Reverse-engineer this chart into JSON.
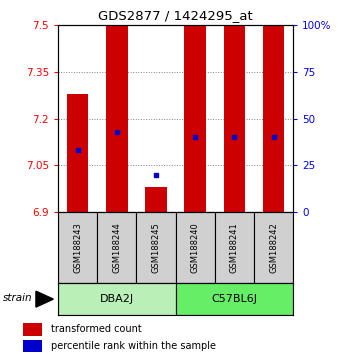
{
  "title": "GDS2877 / 1424295_at",
  "samples": [
    "GSM188243",
    "GSM188244",
    "GSM188245",
    "GSM188240",
    "GSM188241",
    "GSM188242"
  ],
  "red_values": [
    7.28,
    7.5,
    6.98,
    7.5,
    7.5,
    7.5
  ],
  "blue_values_pct": [
    33,
    43,
    20,
    40,
    40,
    40
  ],
  "ylim_left": [
    6.9,
    7.5
  ],
  "ylim_right": [
    0,
    100
  ],
  "yticks_left": [
    6.9,
    7.05,
    7.2,
    7.35,
    7.5
  ],
  "yticks_right": [
    0,
    25,
    50,
    75,
    100
  ],
  "bar_color": "#CC0000",
  "dot_color": "#0000CC",
  "bar_bottom": 6.9,
  "bar_width": 0.55,
  "legend_red": "transformed count",
  "legend_blue": "percentile rank within the sample",
  "dba2j_color": "#b8f0b8",
  "c57_color": "#66ee66",
  "sample_box_color": "#d0d0d0"
}
